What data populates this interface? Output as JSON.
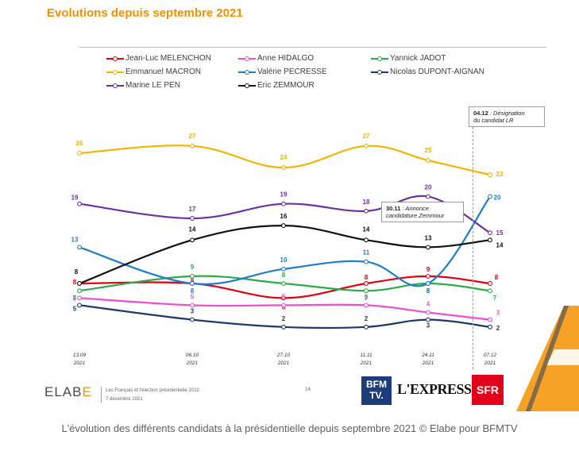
{
  "slide": {
    "title": "Evolutions depuis septembre 2021",
    "footer": {
      "logo_main": "ELAB",
      "logo_accent": "E",
      "subtitle_1": "Les Français et l'élection présidentielle 2022",
      "subtitle_2": "7 décembre 2021",
      "page": "14"
    },
    "partner_logos": {
      "bfm": "BFM TV.",
      "express": "L'EXPRESS",
      "sfr": "SFR"
    },
    "notes": {
      "lr_date": "04.12",
      "lr_text_1": ": Désignation",
      "lr_text_2": "du candidat LR",
      "zemmour_date": "30.11",
      "zemmour_text_1": ": Annonce",
      "zemmour_text_2": "candidature Zemmour"
    }
  },
  "caption": "L'évolution des différents candidats à la présidentielle depuis septembre 2021 © Elabe pour BFMTV",
  "chart_data": {
    "type": "line",
    "x": [
      "13.09 2021",
      "06.10 2021",
      "27.10 2021",
      "11.11 2021",
      "24.11 2021",
      "07.12 2021"
    ],
    "x_top": [
      "13.09",
      "06.10",
      "27.10",
      "11.11",
      "24.11",
      "07.12"
    ],
    "x_bottom": [
      "2021",
      "2021",
      "2021",
      "2021",
      "2021",
      "2021"
    ],
    "ylim": [
      0,
      30
    ],
    "grid": false,
    "legend_position": "top",
    "series": [
      {
        "name": "Jean-Luc MELENCHON",
        "color": "#e3000f",
        "values": [
          8,
          8,
          6,
          8,
          9,
          8
        ]
      },
      {
        "name": "Anne HIDALGO",
        "color": "#ec4fd0",
        "values": [
          6,
          5,
          5,
          5,
          4,
          3
        ]
      },
      {
        "name": "Yannick JADOT",
        "color": "#2bab4a",
        "values": [
          7,
          9,
          8,
          7,
          8,
          7
        ]
      },
      {
        "name": "Emmanuel MACRON",
        "color": "#f5b400",
        "values": [
          26,
          27,
          24,
          27,
          25,
          23
        ]
      },
      {
        "name": "Valérie PECRESSE",
        "color": "#1f7ec8",
        "values": [
          13,
          8,
          10,
          11,
          8,
          20
        ]
      },
      {
        "name": "Nicolas DUPONT-AIGNAN",
        "color": "#1f3a6a",
        "values": [
          5,
          3,
          2,
          2,
          3,
          2
        ]
      },
      {
        "name": "Marine LE PEN",
        "color": "#7030a0",
        "values": [
          19,
          17,
          19,
          18,
          20,
          15
        ]
      },
      {
        "name": "Eric ZEMMOUR",
        "color": "#111111",
        "values": [
          8,
          14,
          16,
          14,
          13,
          14
        ]
      }
    ]
  }
}
